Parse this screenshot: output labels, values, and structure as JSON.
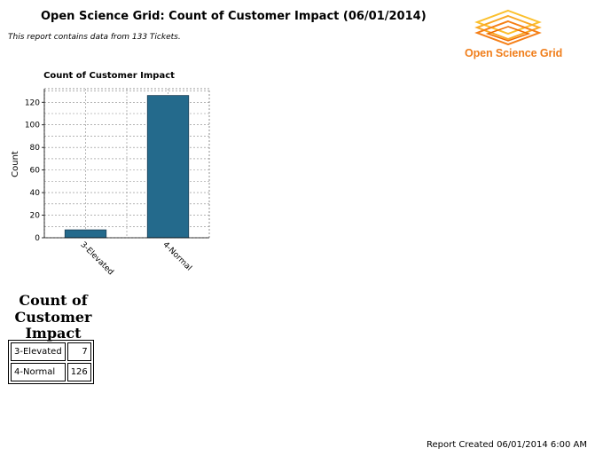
{
  "report": {
    "title": "Open Science Grid: Count of Customer Impact (06/01/2014)",
    "subtitle": "This report contains data from 133 Tickets.",
    "created": "Report Created 06/01/2014 6:00 AM"
  },
  "logo": {
    "text": "Open Science Grid",
    "color": "#f07e1b"
  },
  "chart_data": {
    "type": "bar",
    "title": "Count of Customer Impact",
    "xlabel": "",
    "ylabel": "Count",
    "categories": [
      "3-Elevated",
      "4-Normal"
    ],
    "values": [
      7,
      126
    ],
    "ylim": [
      0,
      132
    ],
    "yticks": [
      0,
      20,
      40,
      60,
      80,
      100,
      120
    ],
    "grid": true,
    "bar_color": "#246a8c"
  },
  "table": {
    "title": "Count of Customer Impact",
    "rows": [
      {
        "label": "3-Elevated",
        "value": "7"
      },
      {
        "label": "4-Normal",
        "value": "126"
      }
    ]
  }
}
